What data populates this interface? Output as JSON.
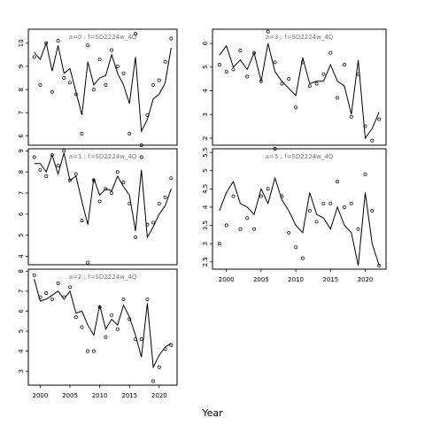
{
  "figure": {
    "xlabel": "Year"
  },
  "chart_data": [
    {
      "type": "line",
      "title": "a=0  :  f=SD2224w_4Q",
      "xlim": [
        1998,
        2023
      ],
      "ylim": [
        5.6,
        10.6
      ],
      "yticks": [
        6,
        7,
        8,
        9,
        10
      ],
      "xticks": [],
      "x": [
        1999,
        2000,
        2001,
        2002,
        2003,
        2004,
        2005,
        2006,
        2007,
        2008,
        2009,
        2010,
        2011,
        2012,
        2013,
        2014,
        2015,
        2016,
        2017,
        2018,
        2019,
        2020,
        2021,
        2022
      ],
      "series": [
        {
          "kind": "line",
          "values": [
            9.6,
            9.3,
            10.0,
            8.8,
            9.9,
            8.7,
            8.9,
            7.9,
            6.9,
            9.2,
            8.2,
            8.5,
            8.6,
            9.5,
            8.7,
            8.2,
            7.4,
            9.4,
            6.2,
            6.7,
            7.6,
            7.8,
            8.3,
            9.8
          ]
        },
        {
          "kind": "points",
          "values": [
            9.4,
            8.2,
            10.0,
            7.9,
            10.1,
            8.5,
            8.3,
            7.8,
            6.1,
            9.9,
            8.0,
            9.3,
            8.2,
            9.7,
            9.0,
            8.7,
            6.1,
            10.4,
            5.6,
            6.9,
            8.2,
            8.4,
            9.2,
            10.2
          ]
        }
      ]
    },
    {
      "type": "line",
      "title": "a=3  :  f=SD2224w_4Q",
      "xlim": [
        1998,
        2023
      ],
      "ylim": [
        1.7,
        6.6
      ],
      "yticks": [
        2,
        3,
        4,
        5,
        6
      ],
      "xticks": [],
      "x": [
        1999,
        2000,
        2001,
        2002,
        2003,
        2004,
        2005,
        2006,
        2007,
        2008,
        2009,
        2010,
        2011,
        2012,
        2013,
        2014,
        2015,
        2016,
        2017,
        2018,
        2019,
        2020,
        2021,
        2022
      ],
      "series": [
        {
          "kind": "line",
          "values": [
            5.5,
            5.9,
            5.0,
            5.3,
            4.9,
            5.6,
            4.4,
            6.0,
            4.8,
            4.4,
            4.1,
            3.8,
            5.4,
            4.3,
            4.4,
            4.4,
            5.1,
            4.4,
            4.2,
            3.0,
            5.3,
            2.0,
            2.4,
            3.1
          ]
        },
        {
          "kind": "points",
          "values": [
            5.1,
            4.8,
            4.9,
            5.7,
            4.6,
            5.6,
            4.4,
            6.5,
            5.2,
            4.3,
            4.5,
            3.3,
            5.2,
            4.2,
            4.3,
            4.7,
            5.6,
            3.7,
            5.1,
            2.9,
            4.7,
            2.5,
            1.9,
            2.8
          ]
        }
      ]
    },
    {
      "type": "line",
      "title": "a=1  :  f=SD2224w_4Q",
      "xlim": [
        1998,
        2023
      ],
      "ylim": [
        3.6,
        9.1
      ],
      "yticks": [
        4,
        5,
        6,
        7,
        8,
        9
      ],
      "xticks": [],
      "x": [
        1999,
        2000,
        2001,
        2002,
        2003,
        2004,
        2005,
        2006,
        2007,
        2008,
        2009,
        2010,
        2011,
        2012,
        2013,
        2014,
        2015,
        2016,
        2017,
        2018,
        2019,
        2020,
        2021,
        2022
      ],
      "series": [
        {
          "kind": "line",
          "values": [
            8.4,
            8.4,
            8.0,
            8.8,
            7.9,
            8.9,
            7.6,
            7.8,
            6.6,
            5.5,
            7.7,
            6.9,
            7.2,
            7.1,
            7.8,
            7.3,
            6.9,
            5.2,
            8.1,
            4.9,
            5.4,
            6.0,
            6.4,
            7.2
          ]
        },
        {
          "kind": "points",
          "values": [
            8.7,
            8.1,
            7.8,
            8.8,
            8.3,
            9.0,
            7.6,
            7.9,
            5.7,
            3.7,
            7.6,
            6.6,
            7.2,
            7.0,
            8.0,
            7.5,
            6.5,
            4.9,
            8.7,
            5.5,
            5.6,
            6.5,
            6.8,
            7.7
          ]
        }
      ]
    },
    {
      "type": "line",
      "title": "a=5  :  f=SD2224w_4Q",
      "xlim": [
        1998,
        2023
      ],
      "ylim": [
        2.3,
        5.6
      ],
      "yticks": [
        2.5,
        3.0,
        3.5,
        4.0,
        4.5,
        5.0,
        5.5
      ],
      "xticks": [
        2000,
        2005,
        2010,
        2015,
        2020
      ],
      "x": [
        1999,
        2000,
        2001,
        2002,
        2003,
        2004,
        2005,
        2006,
        2007,
        2008,
        2009,
        2010,
        2011,
        2012,
        2013,
        2014,
        2015,
        2016,
        2017,
        2018,
        2019,
        2020,
        2021,
        2022
      ],
      "series": [
        {
          "kind": "line",
          "values": [
            3.9,
            4.4,
            4.7,
            4.1,
            4.0,
            3.8,
            4.5,
            4.1,
            4.8,
            4.2,
            3.9,
            3.5,
            3.3,
            4.4,
            3.8,
            3.7,
            3.4,
            4.0,
            3.5,
            3.3,
            2.4,
            4.4,
            3.0,
            2.4
          ]
        },
        {
          "kind": "points",
          "values": [
            3.0,
            3.5,
            4.3,
            3.4,
            3.7,
            3.4,
            4.3,
            4.5,
            5.6,
            4.3,
            3.3,
            2.9,
            2.6,
            3.9,
            3.6,
            4.1,
            4.1,
            4.7,
            4.0,
            4.1,
            3.4,
            4.9,
            3.9,
            2.4
          ]
        }
      ]
    },
    {
      "type": "line",
      "title": "a=2  :  f=SD2224w_4Q",
      "xlim": [
        1998,
        2023
      ],
      "ylim": [
        2.3,
        8.1
      ],
      "yticks": [
        3,
        4,
        5,
        6,
        7,
        8
      ],
      "xticks": [
        2000,
        2005,
        2010,
        2015,
        2020
      ],
      "x": [
        1999,
        2000,
        2001,
        2002,
        2003,
        2004,
        2005,
        2006,
        2007,
        2008,
        2009,
        2010,
        2011,
        2012,
        2013,
        2014,
        2015,
        2016,
        2017,
        2018,
        2019,
        2020,
        2021,
        2022
      ],
      "series": [
        {
          "kind": "line",
          "values": [
            7.6,
            6.5,
            6.6,
            6.8,
            7.0,
            6.6,
            7.0,
            5.9,
            6.0,
            5.3,
            4.8,
            6.3,
            5.1,
            5.6,
            5.3,
            6.3,
            5.7,
            4.8,
            3.7,
            6.4,
            3.2,
            3.8,
            4.2,
            4.4
          ]
        },
        {
          "kind": "points",
          "values": [
            7.8,
            6.7,
            6.9,
            6.6,
            7.4,
            6.7,
            7.2,
            5.7,
            5.2,
            4.0,
            4.0,
            6.2,
            4.7,
            5.8,
            5.1,
            6.6,
            5.6,
            4.6,
            4.6,
            6.6,
            2.5,
            3.2,
            4.1,
            4.3
          ]
        }
      ]
    }
  ]
}
